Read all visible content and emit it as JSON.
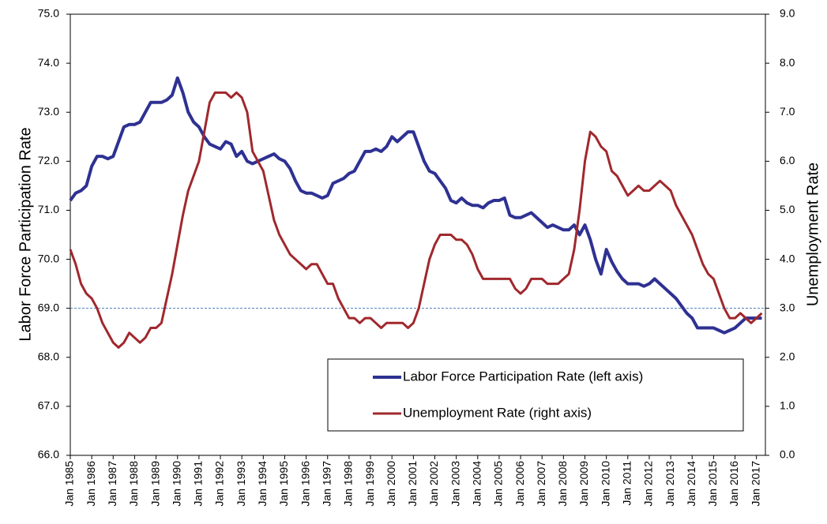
{
  "chart_data": {
    "type": "line",
    "y_label": "Labor Force Participation Rate",
    "y2_label": "Unemployment Rate",
    "x": [
      "1985-01",
      "1985-04",
      "1985-07",
      "1985-10",
      "1986-01",
      "1986-04",
      "1986-07",
      "1986-10",
      "1987-01",
      "1987-04",
      "1987-07",
      "1987-10",
      "1988-01",
      "1988-04",
      "1988-07",
      "1988-10",
      "1989-01",
      "1989-04",
      "1989-07",
      "1989-10",
      "1990-01",
      "1990-04",
      "1990-07",
      "1990-10",
      "1991-01",
      "1991-04",
      "1991-07",
      "1991-10",
      "1992-01",
      "1992-04",
      "1992-07",
      "1992-10",
      "1993-01",
      "1993-04",
      "1993-07",
      "1993-10",
      "1994-01",
      "1994-04",
      "1994-07",
      "1994-10",
      "1995-01",
      "1995-04",
      "1995-07",
      "1995-10",
      "1996-01",
      "1996-04",
      "1996-07",
      "1996-10",
      "1997-01",
      "1997-04",
      "1997-07",
      "1997-10",
      "1998-01",
      "1998-04",
      "1998-07",
      "1998-10",
      "1999-01",
      "1999-04",
      "1999-07",
      "1999-10",
      "2000-01",
      "2000-04",
      "2000-07",
      "2000-10",
      "2001-01",
      "2001-04",
      "2001-07",
      "2001-10",
      "2002-01",
      "2002-04",
      "2002-07",
      "2002-10",
      "2003-01",
      "2003-04",
      "2003-07",
      "2003-10",
      "2004-01",
      "2004-04",
      "2004-07",
      "2004-10",
      "2005-01",
      "2005-04",
      "2005-07",
      "2005-10",
      "2006-01",
      "2006-04",
      "2006-07",
      "2006-10",
      "2007-01",
      "2007-04",
      "2007-07",
      "2007-10",
      "2008-01",
      "2008-04",
      "2008-07",
      "2008-10",
      "2009-01",
      "2009-04",
      "2009-07",
      "2009-10",
      "2010-01",
      "2010-04",
      "2010-07",
      "2010-10",
      "2011-01",
      "2011-04",
      "2011-07",
      "2011-10",
      "2012-01",
      "2012-04",
      "2012-07",
      "2012-10",
      "2013-01",
      "2013-04",
      "2013-07",
      "2013-10",
      "2014-01",
      "2014-04",
      "2014-07",
      "2014-10",
      "2015-01",
      "2015-04",
      "2015-07",
      "2015-10",
      "2016-01",
      "2016-04",
      "2016-07",
      "2016-10",
      "2017-01",
      "2017-04"
    ],
    "series": [
      {
        "name": "Labor Force Participation Rate (left axis)",
        "color": "#2e3192",
        "axis": "y",
        "values": [
          71.2,
          71.35,
          71.4,
          71.5,
          71.9,
          72.1,
          72.1,
          72.05,
          72.1,
          72.4,
          72.7,
          72.75,
          72.75,
          72.8,
          73.0,
          73.2,
          73.2,
          73.2,
          73.25,
          73.35,
          73.7,
          73.4,
          73.0,
          72.8,
          72.7,
          72.5,
          72.35,
          72.3,
          72.25,
          72.4,
          72.35,
          72.1,
          72.2,
          72.0,
          71.95,
          72.0,
          72.05,
          72.1,
          72.15,
          72.05,
          72.0,
          71.85,
          71.6,
          71.4,
          71.35,
          71.35,
          71.3,
          71.25,
          71.3,
          71.55,
          71.6,
          71.65,
          71.75,
          71.8,
          72.0,
          72.2,
          72.2,
          72.25,
          72.2,
          72.3,
          72.5,
          72.4,
          72.5,
          72.6,
          72.6,
          72.3,
          72.0,
          71.8,
          71.75,
          71.6,
          71.45,
          71.2,
          71.15,
          71.25,
          71.15,
          71.1,
          71.1,
          71.05,
          71.15,
          71.2,
          71.2,
          71.25,
          70.9,
          70.85,
          70.85,
          70.9,
          70.95,
          70.85,
          70.75,
          70.65,
          70.7,
          70.65,
          70.6,
          70.6,
          70.7,
          70.5,
          70.7,
          70.4,
          70.0,
          69.7,
          70.2,
          69.95,
          69.75,
          69.6,
          69.5,
          69.5,
          69.5,
          69.45,
          69.5,
          69.6,
          69.5,
          69.4,
          69.3,
          69.2,
          69.05,
          68.9,
          68.8,
          68.6,
          68.6,
          68.6,
          68.6,
          68.55,
          68.5,
          68.55,
          68.6,
          68.7,
          68.8,
          68.8,
          68.8,
          68.8
        ]
      },
      {
        "name": "Unemployment Rate (right axis)",
        "color": "#a0282d",
        "axis": "y2",
        "values": [
          4.2,
          3.9,
          3.5,
          3.3,
          3.2,
          3.0,
          2.7,
          2.5,
          2.3,
          2.2,
          2.3,
          2.5,
          2.4,
          2.3,
          2.4,
          2.6,
          2.6,
          2.7,
          3.2,
          3.7,
          4.3,
          4.9,
          5.4,
          5.7,
          6.0,
          6.6,
          7.2,
          7.4,
          7.4,
          7.4,
          7.3,
          7.4,
          7.3,
          7.0,
          6.2,
          6.0,
          5.8,
          5.3,
          4.8,
          4.5,
          4.3,
          4.1,
          4.0,
          3.9,
          3.8,
          3.9,
          3.9,
          3.7,
          3.5,
          3.5,
          3.2,
          3.0,
          2.8,
          2.8,
          2.7,
          2.8,
          2.8,
          2.7,
          2.6,
          2.7,
          2.7,
          2.7,
          2.7,
          2.6,
          2.7,
          3.0,
          3.5,
          4.0,
          4.3,
          4.5,
          4.5,
          4.5,
          4.4,
          4.4,
          4.3,
          4.1,
          3.8,
          3.6,
          3.6,
          3.6,
          3.6,
          3.6,
          3.6,
          3.4,
          3.3,
          3.4,
          3.6,
          3.6,
          3.6,
          3.5,
          3.5,
          3.5,
          3.6,
          3.7,
          4.2,
          5.0,
          6.0,
          6.6,
          6.5,
          6.3,
          6.2,
          5.8,
          5.7,
          5.5,
          5.3,
          5.4,
          5.5,
          5.4,
          5.4,
          5.5,
          5.6,
          5.5,
          5.4,
          5.1,
          4.9,
          4.7,
          4.5,
          4.2,
          3.9,
          3.7,
          3.6,
          3.3,
          3.0,
          2.8,
          2.8,
          2.9,
          2.8,
          2.7,
          2.8,
          2.9
        ]
      }
    ],
    "xlim": [
      "1985-01",
      "2017-06"
    ],
    "xticks": [
      {
        "value": "1985-01",
        "label": "Jan 1985"
      },
      {
        "value": "1986-01",
        "label": "Jan 1986"
      },
      {
        "value": "1987-01",
        "label": "Jan 1987"
      },
      {
        "value": "1988-01",
        "label": "Jan 1988"
      },
      {
        "value": "1989-01",
        "label": "Jan 1989"
      },
      {
        "value": "1990-01",
        "label": "Jan 1990"
      },
      {
        "value": "1991-01",
        "label": "Jan 1991"
      },
      {
        "value": "1992-01",
        "label": "Jan 1992"
      },
      {
        "value": "1993-01",
        "label": "Jan 1993"
      },
      {
        "value": "1994-01",
        "label": "Jan 1994"
      },
      {
        "value": "1995-01",
        "label": "Jan 1995"
      },
      {
        "value": "1996-01",
        "label": "Jan 1996"
      },
      {
        "value": "1997-01",
        "label": "Jan 1997"
      },
      {
        "value": "1998-01",
        "label": "Jan 1998"
      },
      {
        "value": "1999-01",
        "label": "Jan 1999"
      },
      {
        "value": "2000-01",
        "label": "Jan 2000"
      },
      {
        "value": "2001-01",
        "label": "Jan 2001"
      },
      {
        "value": "2002-01",
        "label": "Jan 2002"
      },
      {
        "value": "2003-01",
        "label": "Jan 2003"
      },
      {
        "value": "2004-01",
        "label": "Jan 2004"
      },
      {
        "value": "2005-01",
        "label": "Jan 2005"
      },
      {
        "value": "2006-01",
        "label": "Jan 2006"
      },
      {
        "value": "2007-01",
        "label": "Jan 2007"
      },
      {
        "value": "2008-01",
        "label": "Jan 2008"
      },
      {
        "value": "2009-01",
        "label": "Jan 2009"
      },
      {
        "value": "2010-01",
        "label": "Jan 2010"
      },
      {
        "value": "2011-01",
        "label": "Jan 2011"
      },
      {
        "value": "2012-01",
        "label": "Jan 2012"
      },
      {
        "value": "2013-01",
        "label": "Jan 2013"
      },
      {
        "value": "2014-01",
        "label": "Jan 2014"
      },
      {
        "value": "2015-01",
        "label": "Jan 2015"
      },
      {
        "value": "2016-01",
        "label": "Jan 2016"
      },
      {
        "value": "2017-01",
        "label": "Jan 2017"
      }
    ],
    "ylim": [
      66,
      75
    ],
    "yticks": [
      {
        "value": 66,
        "label": "66.0"
      },
      {
        "value": 67,
        "label": "67.0"
      },
      {
        "value": 68,
        "label": "68.0"
      },
      {
        "value": 69,
        "label": "69.0"
      },
      {
        "value": 70,
        "label": "70.0"
      },
      {
        "value": 71,
        "label": "71.0"
      },
      {
        "value": 72,
        "label": "72.0"
      },
      {
        "value": 73,
        "label": "73.0"
      },
      {
        "value": 74,
        "label": "74.0"
      },
      {
        "value": 75,
        "label": "75.0"
      }
    ],
    "y2lim": [
      0,
      9
    ],
    "y2ticks": [
      {
        "value": 0,
        "label": "0.0"
      },
      {
        "value": 1,
        "label": "1.0"
      },
      {
        "value": 2,
        "label": "2.0"
      },
      {
        "value": 3,
        "label": "3.0"
      },
      {
        "value": 4,
        "label": "4.0"
      },
      {
        "value": 5,
        "label": "5.0"
      },
      {
        "value": 6,
        "label": "6.0"
      },
      {
        "value": 7,
        "label": "7.0"
      },
      {
        "value": 8,
        "label": "8.0"
      },
      {
        "value": 9,
        "label": "9.0"
      }
    ],
    "reference_line": {
      "value": 69,
      "color": "#4a7ebb"
    },
    "grid": false
  }
}
